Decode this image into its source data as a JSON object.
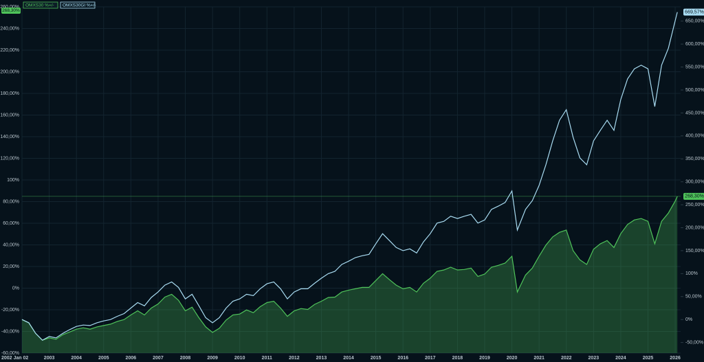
{
  "chart_data": {
    "type": "line",
    "x": [
      2002,
      2002.25,
      2002.5,
      2002.75,
      2003,
      2003.25,
      2003.5,
      2003.75,
      2004,
      2004.25,
      2004.5,
      2004.75,
      2005,
      2005.25,
      2005.5,
      2005.75,
      2006,
      2006.25,
      2006.5,
      2006.75,
      2007,
      2007.25,
      2007.5,
      2007.75,
      2008,
      2008.25,
      2008.5,
      2008.75,
      2009,
      2009.25,
      2009.5,
      2009.75,
      2010,
      2010.25,
      2010.5,
      2010.75,
      2011,
      2011.25,
      2011.5,
      2011.75,
      2012,
      2012.25,
      2012.5,
      2012.75,
      2013,
      2013.25,
      2013.5,
      2013.75,
      2014,
      2014.25,
      2014.5,
      2014.75,
      2015,
      2015.25,
      2015.5,
      2015.75,
      2016,
      2016.25,
      2016.5,
      2016.75,
      2017,
      2017.25,
      2017.5,
      2017.75,
      2018,
      2018.25,
      2018.5,
      2018.75,
      2019,
      2019.25,
      2019.5,
      2019.75,
      2020,
      2020.2,
      2020.5,
      2020.75,
      2021,
      2021.25,
      2021.5,
      2021.75,
      2022,
      2022.25,
      2022.5,
      2022.75,
      2023,
      2023.25,
      2023.5,
      2023.75,
      2024,
      2024.25,
      2024.5,
      2024.75,
      2025,
      2025.25,
      2025.5,
      2025.75,
      2026,
      2026.08
    ],
    "series": [
      {
        "name": "OMXS30 %+/-",
        "color": "#4fc35a",
        "axis": "y2",
        "area": true,
        "values": [
          0,
          -7,
          -30,
          -45,
          -40,
          -43,
          -33,
          -27,
          -21,
          -18,
          -21,
          -16,
          -13,
          -10,
          -4,
          0,
          10,
          19,
          10,
          25,
          34,
          49,
          55,
          42,
          19,
          27,
          4,
          -16,
          -28,
          -19,
          -1,
          10,
          12,
          21,
          15,
          28,
          37,
          40,
          25,
          7,
          19,
          24,
          22,
          33,
          40,
          48,
          49,
          60,
          64,
          67,
          70,
          70,
          85,
          100,
          87,
          75,
          67,
          70,
          60,
          79,
          90,
          105,
          108,
          114,
          108,
          109,
          112,
          94,
          99,
          114,
          118,
          123,
          138,
          60,
          97,
          112,
          138,
          162,
          180,
          190,
          195,
          150,
          130,
          120,
          153,
          165,
          172,
          157,
          187,
          207,
          217,
          220,
          214,
          165,
          214,
          232,
          258,
          268.3
        ],
        "value_labels": [
          null,
          null,
          null,
          null,
          null,
          null,
          null,
          null,
          null,
          null,
          null,
          null,
          null,
          null,
          null,
          null,
          null,
          null,
          null,
          null,
          null,
          null,
          null,
          null,
          null,
          null,
          null,
          null,
          null,
          null,
          null,
          null,
          null,
          null,
          null,
          null,
          null,
          null,
          null,
          null,
          null,
          null,
          null,
          null,
          null,
          null,
          null,
          null,
          null,
          null,
          null,
          null,
          null,
          null,
          null,
          null,
          null,
          null,
          null,
          null,
          null,
          null,
          null,
          null,
          null,
          null,
          null,
          null,
          null,
          null,
          null,
          null,
          null,
          null,
          null,
          null,
          null,
          null,
          null,
          null,
          null,
          null,
          null,
          null,
          null,
          null,
          null,
          null,
          null,
          null,
          null,
          null,
          null,
          null,
          null,
          null,
          null,
          "268,30%"
        ]
      },
      {
        "name": "OMXS30GI %+/-",
        "color": "#a9dcf2",
        "axis": "y2",
        "area": false,
        "values": [
          0,
          -7,
          -30,
          -45,
          -37,
          -40,
          -30,
          -22,
          -15,
          -12,
          -13,
          -7,
          -3,
          0,
          7,
          13,
          25,
          37,
          30,
          48,
          60,
          75,
          82,
          70,
          45,
          55,
          30,
          4,
          -7,
          4,
          25,
          40,
          45,
          55,
          52,
          67,
          78,
          82,
          67,
          45,
          60,
          67,
          67,
          79,
          90,
          100,
          105,
          120,
          127,
          135,
          139,
          142,
          165,
          187,
          172,
          157,
          150,
          154,
          145,
          169,
          187,
          210,
          214,
          225,
          220,
          225,
          229,
          210,
          217,
          240,
          247,
          255,
          280,
          195,
          240,
          259,
          292,
          337,
          389,
          434,
          457,
          397,
          352,
          337,
          389,
          412,
          434,
          412,
          479,
          524,
          546,
          554,
          546,
          464,
          554,
          591,
          651,
          669.57
        ],
        "value_labels": [
          null,
          null,
          null,
          null,
          null,
          null,
          null,
          null,
          null,
          null,
          null,
          null,
          null,
          null,
          null,
          null,
          null,
          null,
          null,
          null,
          null,
          null,
          null,
          null,
          null,
          null,
          null,
          null,
          null,
          null,
          null,
          null,
          null,
          null,
          null,
          null,
          null,
          null,
          null,
          null,
          null,
          null,
          null,
          null,
          null,
          null,
          null,
          null,
          null,
          null,
          null,
          null,
          null,
          null,
          null,
          null,
          null,
          null,
          null,
          null,
          null,
          null,
          null,
          null,
          null,
          null,
          null,
          null,
          null,
          null,
          null,
          null,
          null,
          null,
          null,
          null,
          null,
          null,
          null,
          null,
          null,
          null,
          null,
          null,
          null,
          null,
          null,
          null,
          null,
          null,
          null,
          null,
          null,
          null,
          null,
          null,
          null,
          "669,57%"
        ]
      }
    ],
    "xlim": [
      2002,
      2026.2
    ],
    "xticks": [
      {
        "value": 2002,
        "label": "2002 Jan 02"
      },
      2003,
      2004,
      2005,
      2006,
      2007,
      2008,
      2009,
      2010,
      2011,
      2012,
      2013,
      2014,
      2015,
      2016,
      2017,
      2018,
      2019,
      2020,
      2021,
      2022,
      2023,
      2024,
      2025,
      2026
    ],
    "ylim": [
      -60,
      260
    ],
    "yticks": [
      {
        "value": -60,
        "label": "-60,00%"
      },
      {
        "value": -40,
        "label": "-40,00%"
      },
      {
        "value": -20,
        "label": "-20,00%"
      },
      {
        "value": 0,
        "label": "0%"
      },
      {
        "value": 20,
        "label": "20,00%"
      },
      {
        "value": 40,
        "label": "40,00%"
      },
      {
        "value": 60,
        "label": "60,00%"
      },
      {
        "value": 80,
        "label": "80,00%"
      },
      {
        "value": 100,
        "label": "100%"
      },
      {
        "value": 120,
        "label": "120,00%"
      },
      {
        "value": 140,
        "label": "140,00%"
      },
      {
        "value": 160,
        "label": "160,00%"
      },
      {
        "value": 180,
        "label": "180,00%"
      },
      {
        "value": 200,
        "label": "200,00%"
      },
      {
        "value": 220,
        "label": "220,00%"
      },
      {
        "value": 240,
        "label": "240,00%"
      },
      {
        "value": 260,
        "label": "260,00%"
      }
    ],
    "y2lim": [
      -73,
      681
    ],
    "y2ticks": [
      {
        "value": -50,
        "label": "-50,00%"
      },
      {
        "value": 0,
        "label": "0%"
      },
      {
        "value": 50,
        "label": "50,00%"
      },
      {
        "value": 100,
        "label": "100%"
      },
      {
        "value": 150,
        "label": "150,00%"
      },
      {
        "value": 200,
        "label": "200,00%"
      },
      {
        "value": 250,
        "label": "250,00%"
      },
      {
        "value": 300,
        "label": "300,00%"
      },
      {
        "value": 350,
        "label": "350,00%"
      },
      {
        "value": 400,
        "label": "400,00%"
      },
      {
        "value": 450,
        "label": "450,00%"
      },
      {
        "value": 500,
        "label": "500,00%"
      },
      {
        "value": 550,
        "label": "550,00%"
      },
      {
        "value": 600,
        "label": "600,00%"
      },
      {
        "value": 650,
        "label": "650,00%"
      }
    ],
    "grid": true
  }
}
